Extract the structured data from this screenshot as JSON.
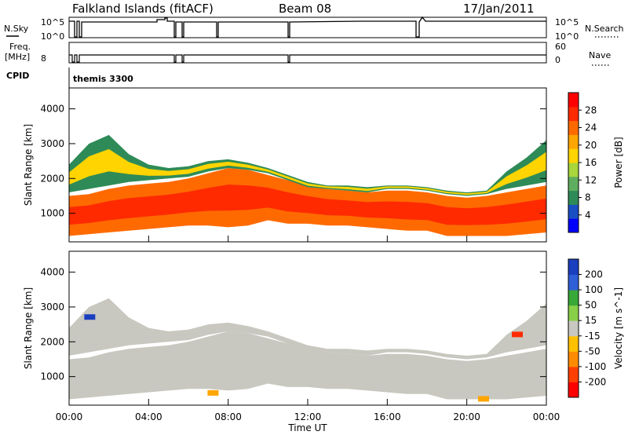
{
  "header": {
    "station": "Falkland Islands (fitACF)",
    "beam": "Beam 08",
    "date": "17/Jan/2011"
  },
  "summary_panels": {
    "nsky_label": "N.Sky",
    "nsky_ticks": [
      "10^5",
      "10^0"
    ],
    "nsearch_label": "N.Search",
    "nsearch_ticks": [
      "10^5",
      "10^0"
    ],
    "freq_label": "Freq.",
    "freq_unit": "[MHz]",
    "freq_ticks": [
      "8"
    ],
    "nave_label": "Nave",
    "nave_ticks": [
      "60",
      "0"
    ],
    "cpid_label": "CPID",
    "cpid_value": "themis 3300"
  },
  "colors": {
    "power": [
      "#0000ff",
      "#1a4fc4",
      "#2e8b57",
      "#5fae5f",
      "#a8d63c",
      "#ffd400",
      "#ffa500",
      "#ff6a00",
      "#ff2a00",
      "#ff0000"
    ],
    "velocity": [
      "#1a3fbf",
      "#2f5fd6",
      "#38a838",
      "#88d048",
      "#c8c8c0",
      "#ffc000",
      "#ff8c00",
      "#ff4000",
      "#ff0000"
    ],
    "background_echo": "#c8c8c0"
  },
  "chart_data": [
    {
      "type": "heatmap",
      "title": "",
      "xlabel": "Time UT",
      "ylabel": "Slant Range [km]",
      "x_ticks": [
        "00:00",
        "04:00",
        "08:00",
        "12:00",
        "16:00",
        "20:00",
        "00:00"
      ],
      "y_ticks": [
        1000,
        2000,
        3000,
        4000
      ],
      "xlim": [
        0,
        24
      ],
      "ylim": [
        180,
        4600
      ],
      "colorbar": {
        "label": "Power [dB]",
        "ticks": [
          4,
          8,
          12,
          16,
          20,
          24,
          28
        ]
      },
      "echo_bands": [
        {
          "name": "low-range",
          "x": [
            0,
            1,
            2,
            3,
            4,
            5,
            6,
            7,
            8,
            9,
            10,
            11,
            12,
            13,
            14,
            15,
            16,
            17,
            18,
            19,
            20,
            21,
            22,
            23,
            24
          ],
          "lower": [
            350,
            400,
            450,
            500,
            550,
            600,
            650,
            650,
            600,
            650,
            800,
            700,
            700,
            650,
            650,
            600,
            550,
            500,
            500,
            350,
            350,
            350,
            350,
            400,
            450
          ],
          "upper": [
            1500,
            1550,
            1700,
            1800,
            1850,
            1900,
            2000,
            2150,
            2300,
            2250,
            2100,
            1950,
            1800,
            1700,
            1650,
            1600,
            1650,
            1650,
            1600,
            1500,
            1450,
            1500,
            1600,
            1700,
            1800
          ],
          "power_db": 22
        },
        {
          "name": "high-range",
          "x": [
            0,
            1,
            2,
            3,
            4,
            5,
            6,
            7,
            8,
            9,
            10,
            11,
            12,
            13,
            14,
            15,
            16,
            17,
            18,
            19,
            20,
            21,
            22,
            23,
            24
          ],
          "lower": [
            1600,
            1700,
            1800,
            1900,
            1950,
            2000,
            2050,
            2200,
            2300,
            2250,
            2150,
            1950,
            1750,
            1700,
            1650,
            1600,
            1700,
            1700,
            1650,
            1550,
            1500,
            1550,
            1700,
            1800,
            1900
          ],
          "upper": [
            2400,
            3000,
            3250,
            2700,
            2400,
            2300,
            2350,
            2500,
            2550,
            2450,
            2300,
            2100,
            1900,
            1800,
            1800,
            1750,
            1800,
            1800,
            1750,
            1650,
            1600,
            1650,
            2200,
            2600,
            3100
          ],
          "power_db": 10
        }
      ]
    },
    {
      "type": "heatmap",
      "title": "",
      "xlabel": "Time UT",
      "ylabel": "Slant Range [km]",
      "x_ticks": [
        "00:00",
        "04:00",
        "08:00",
        "12:00",
        "16:00",
        "20:00",
        "00:00"
      ],
      "y_ticks": [
        1000,
        2000,
        3000,
        4000
      ],
      "xlim": [
        0,
        24
      ],
      "ylim": [
        180,
        4600
      ],
      "colorbar": {
        "label": "Velocity [m s^-1]",
        "ticks": [
          200,
          100,
          50,
          15,
          -15,
          -50,
          -100,
          -200
        ]
      },
      "dominant_velocity": "-15 to 15",
      "scattered_flows": [
        {
          "x": 7.2,
          "range_km": 520,
          "velocity": -50
        },
        {
          "x": 20.8,
          "range_km": 350,
          "velocity": -50
        },
        {
          "x": 22.5,
          "range_km": 2200,
          "velocity": -150
        },
        {
          "x": 1.0,
          "range_km": 2700,
          "velocity": 100
        }
      ]
    }
  ]
}
